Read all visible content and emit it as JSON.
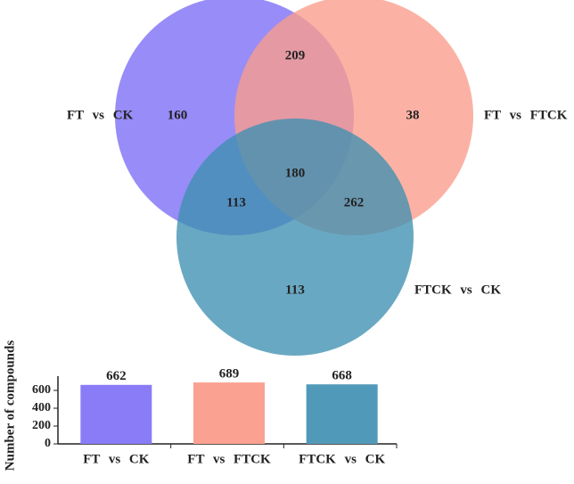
{
  "chart_data": [
    {
      "type": "venn",
      "sets": [
        {
          "name": "FT vs CK",
          "color": "#7b6cf6"
        },
        {
          "name": "FT vs FTCK",
          "color": "#fa9c8b"
        },
        {
          "name": "FTCK vs CK",
          "color": "#3f8fb1"
        }
      ],
      "regions": [
        160,
        209,
        38,
        180,
        113,
        262,
        113
      ]
    },
    {
      "type": "bar",
      "ylabel": "Number of compounds",
      "categories": [
        "FT vs CK",
        "FT vs FTCK",
        "FTCK vs CK"
      ],
      "values": [
        662,
        689,
        668
      ],
      "colors": [
        "#8a7cf7",
        "#fba191",
        "#5199b8"
      ],
      "ylim": [
        0,
        700
      ],
      "yticks": [
        0,
        200,
        400,
        600
      ]
    }
  ]
}
